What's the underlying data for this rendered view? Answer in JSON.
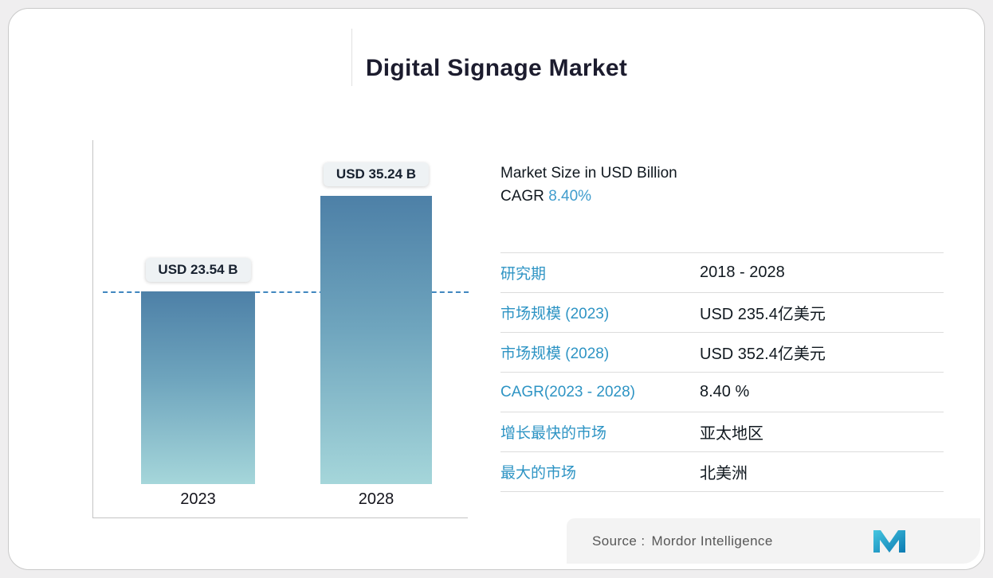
{
  "title": "Digital Signage Market",
  "chart_data": {
    "type": "bar",
    "title": "Digital Signage Market",
    "categories": [
      "2023",
      "2028"
    ],
    "values": [
      23.54,
      35.24
    ],
    "bar_labels": [
      "USD 23.54 B",
      "USD 35.24 B"
    ],
    "unit": "USD Billion",
    "ylim": [
      0,
      40
    ],
    "reference_line_value": 23.54,
    "grid": false,
    "legend_position": "none"
  },
  "info": {
    "market_size_label": "Market Size in USD Billion",
    "cagr_label": "CAGR",
    "cagr_value": "8.40%"
  },
  "table": {
    "rows": [
      {
        "label": "研究期",
        "value": "2018 - 2028"
      },
      {
        "label": "市场规模 (2023)",
        "value": "USD 235.4亿美元"
      },
      {
        "label": "市场规模 (2028)",
        "value": "USD 352.4亿美元"
      },
      {
        "label": "CAGR(2023 - 2028)",
        "value": "8.40 %"
      },
      {
        "label": "增长最快的市场",
        "value": "亚太地区"
      },
      {
        "label": "最大的市场",
        "value": "北美洲"
      }
    ]
  },
  "source": {
    "label": "Source :",
    "name": "Mordor Intelligence",
    "logo": "mordor-intelligence-logo"
  },
  "colors": {
    "accent_blue": "#3f9ccd",
    "table_label_blue": "#2e94c4",
    "bar_gradient_top": "#4d80a7",
    "bar_gradient_bottom": "#a5d6da",
    "dashed_line": "#4187bf"
  }
}
